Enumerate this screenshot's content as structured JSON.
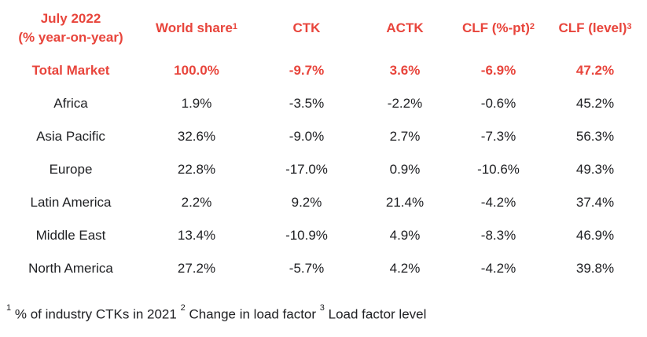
{
  "table": {
    "header": {
      "period_line1": "July 2022",
      "period_line2": "(% year-on-year)",
      "col1": "World share",
      "col1_sup": "1",
      "col2": "CTK",
      "col3": "ACTK",
      "col4": "CLF (%-pt)",
      "col4_sup": "2",
      "col5": "CLF (level)",
      "col5_sup": "3"
    },
    "rows": [
      {
        "region": "Total Market",
        "share": "100.0%",
        "ctk": "-9.7%",
        "actk": "3.6%",
        "clf_pt": "-6.9%",
        "clf_level": "47.2%"
      },
      {
        "region": "Africa",
        "share": "1.9%",
        "ctk": "-3.5%",
        "actk": "-2.2%",
        "clf_pt": "-0.6%",
        "clf_level": "45.2%"
      },
      {
        "region": "Asia Pacific",
        "share": "32.6%",
        "ctk": "-9.0%",
        "actk": "2.7%",
        "clf_pt": "-7.3%",
        "clf_level": "56.3%"
      },
      {
        "region": "Europe",
        "share": "22.8%",
        "ctk": "-17.0%",
        "actk": "0.9%",
        "clf_pt": "-10.6%",
        "clf_level": "49.3%"
      },
      {
        "region": "Latin America",
        "share": "2.2%",
        "ctk": "9.2%",
        "actk": "21.4%",
        "clf_pt": "-4.2%",
        "clf_level": "37.4%"
      },
      {
        "region": "Middle East",
        "share": "13.4%",
        "ctk": "-10.9%",
        "actk": "4.9%",
        "clf_pt": "-8.3%",
        "clf_level": "46.9%"
      },
      {
        "region": "North America",
        "share": "27.2%",
        "ctk": "-5.7%",
        "actk": "4.2%",
        "clf_pt": "-4.2%",
        "clf_level": "39.8%"
      }
    ]
  },
  "footnotes": {
    "n1": "1",
    "t1": "% of industry CTKs in 2021",
    "n2": "2",
    "t2": "Change in load factor",
    "n3": "3",
    "t3": "Load factor level"
  },
  "colors": {
    "accent": "#e8453c",
    "text": "#202124"
  }
}
